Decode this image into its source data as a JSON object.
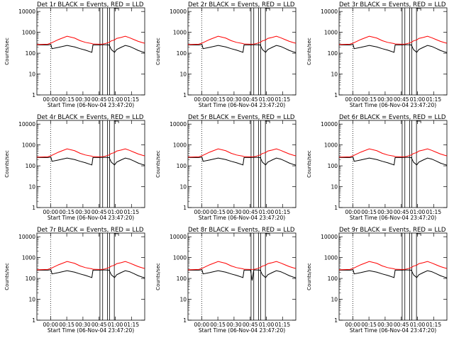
{
  "chart_data": {
    "type": "line",
    "shared": {
      "xlabel": "Start Time (06-Nov-04 23:47:20)",
      "ylabel": "Counts/sec",
      "x_unit": "minutes after 06-Nov-04 23:47:20",
      "xlim": [
        0,
        100
      ],
      "ylim": [
        1,
        15000
      ],
      "yscale": "log",
      "x_ticks": [
        {
          "x": 12.7,
          "label": "00:00"
        },
        {
          "x": 27.7,
          "label": "00:15"
        },
        {
          "x": 42.7,
          "label": "00:30"
        },
        {
          "x": 57.7,
          "label": "00:45"
        },
        {
          "x": 72.7,
          "label": "01:00"
        },
        {
          "x": 87.7,
          "label": "01:15"
        }
      ],
      "y_ticks": [
        {
          "y": 1,
          "label": "1"
        },
        {
          "y": 10,
          "label": "10"
        },
        {
          "y": 100,
          "label": "100"
        },
        {
          "y": 1000,
          "label": "1000"
        },
        {
          "y": 10000,
          "label": "10000"
        }
      ],
      "dotted_marker_x": 12.7,
      "vertical_lines_x": [
        58.5,
        61.0,
        65.5,
        67.5,
        71.8
      ],
      "grid": false,
      "legend": "none",
      "colors": {
        "events": "#000000",
        "lld": "#ff0000"
      },
      "series_x": [
        0,
        5,
        10,
        13,
        14,
        20,
        28,
        35,
        40,
        45,
        51,
        52,
        58,
        61,
        63,
        67,
        69,
        72,
        74,
        78,
        82,
        86,
        90,
        94,
        98,
        100
      ],
      "events_base": [
        250,
        250,
        250,
        260,
        165,
        190,
        235,
        200,
        165,
        140,
        110,
        250,
        250,
        255,
        255,
        250,
        150,
        110,
        150,
        190,
        235,
        210,
        170,
        135,
        115,
        108
      ],
      "lld_base": [
        260,
        265,
        270,
        300,
        320,
        450,
        650,
        530,
        400,
        330,
        290,
        275,
        270,
        272,
        285,
        330,
        390,
        430,
        510,
        570,
        650,
        550,
        450,
        370,
        320,
        300
      ]
    },
    "panels": [
      {
        "title": "Det 1r BLACK = Events, RED = LLD"
      },
      {
        "title": "Det 2r BLACK = Events, RED = LLD"
      },
      {
        "title": "Det 3r BLACK = Events, RED = LLD"
      },
      {
        "title": "Det 4r BLACK = Events, RED = LLD"
      },
      {
        "title": "Det 5r BLACK = Events, RED = LLD"
      },
      {
        "title": "Det 6r BLACK = Events, RED = LLD"
      },
      {
        "title": "Det 7r BLACK = Events, RED = LLD"
      },
      {
        "title": "Det 8r BLACK = Events, RED = LLD",
        "events_dip": {
          "x": 59.5,
          "value": 80
        }
      },
      {
        "title": "Det 9r BLACK = Events, RED = LLD"
      }
    ]
  }
}
